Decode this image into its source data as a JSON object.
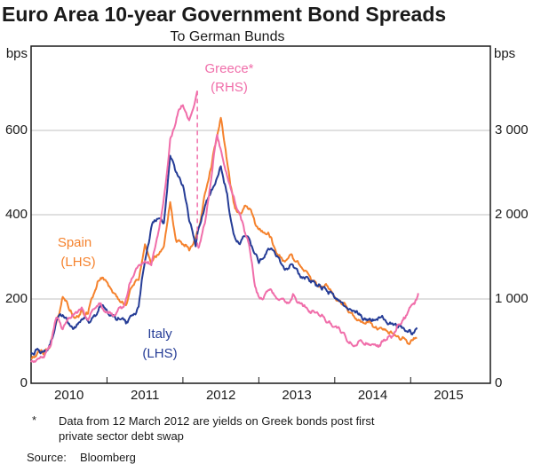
{
  "header": {
    "title": "Euro Area 10-year Government Bond Spreads",
    "subtitle": "To German Bunds"
  },
  "footnote": {
    "marker": "*",
    "text": "Data from 12 March 2012 are yields on Greek bonds post first private sector debt swap"
  },
  "source": {
    "label": "Source:",
    "value": "Bloomberg"
  },
  "chart_data": {
    "type": "line",
    "title": "Euro Area 10-year Government Bond Spreads",
    "subtitle": "To German Bunds",
    "grid": "horizontal",
    "x_axis": {
      "range": [
        2010,
        2016.05
      ],
      "year_ticks": [
        2011,
        2012,
        2013,
        2014,
        2015
      ],
      "year_labels": [
        "2010",
        "2011",
        "2012",
        "2013",
        "2014",
        "2015"
      ]
    },
    "left_axis": {
      "unit": "bps",
      "range": [
        0,
        800
      ],
      "ticks": [
        0,
        200,
        400,
        600
      ],
      "tick_labels": [
        "0",
        "200",
        "400",
        "600"
      ]
    },
    "right_axis": {
      "unit": "bps",
      "range": [
        0,
        4000
      ],
      "ticks": [
        0,
        1000,
        2000,
        3000
      ],
      "tick_labels": [
        "0",
        "1 000",
        "2 000",
        "3 000"
      ]
    },
    "series": [
      {
        "name": "Spain",
        "label": "Spain",
        "sub": "(LHS)",
        "axis": "left",
        "color": "#F5822D",
        "segments": [
          [
            [
              2010.0,
              60
            ],
            [
              2010.083,
              72
            ],
            [
              2010.167,
              68
            ],
            [
              2010.25,
              88
            ],
            [
              2010.333,
              145
            ],
            [
              2010.417,
              205
            ],
            [
              2010.5,
              175
            ],
            [
              2010.583,
              155
            ],
            [
              2010.667,
              175
            ],
            [
              2010.75,
              165
            ],
            [
              2010.833,
              215
            ],
            [
              2010.917,
              250
            ],
            [
              2011.0,
              240
            ],
            [
              2011.083,
              215
            ],
            [
              2011.167,
              195
            ],
            [
              2011.25,
              185
            ],
            [
              2011.333,
              230
            ],
            [
              2011.417,
              245
            ],
            [
              2011.5,
              330
            ],
            [
              2011.583,
              285
            ],
            [
              2011.667,
              305
            ],
            [
              2011.75,
              325
            ],
            [
              2011.833,
              430
            ],
            [
              2011.917,
              335
            ],
            [
              2012.0,
              330
            ],
            [
              2012.083,
              315
            ],
            [
              2012.167,
              345
            ],
            [
              2012.25,
              405
            ],
            [
              2012.333,
              480
            ],
            [
              2012.417,
              560
            ],
            [
              2012.5,
              630
            ],
            [
              2012.583,
              525
            ],
            [
              2012.667,
              430
            ],
            [
              2012.75,
              400
            ],
            [
              2012.833,
              420
            ],
            [
              2012.917,
              400
            ],
            [
              2013.0,
              365
            ],
            [
              2013.083,
              355
            ],
            [
              2013.167,
              345
            ],
            [
              2013.25,
              305
            ],
            [
              2013.333,
              290
            ],
            [
              2013.417,
              305
            ],
            [
              2013.5,
              290
            ],
            [
              2013.583,
              270
            ],
            [
              2013.667,
              255
            ],
            [
              2013.75,
              240
            ],
            [
              2013.833,
              230
            ],
            [
              2013.917,
              225
            ],
            [
              2014.0,
              205
            ],
            [
              2014.083,
              190
            ],
            [
              2014.167,
              175
            ],
            [
              2014.25,
              160
            ],
            [
              2014.333,
              150
            ],
            [
              2014.417,
              145
            ],
            [
              2014.5,
              135
            ],
            [
              2014.583,
              130
            ],
            [
              2014.667,
              128
            ],
            [
              2014.75,
              120
            ],
            [
              2014.833,
              112
            ],
            [
              2014.917,
              107
            ],
            [
              2015.0,
              100
            ],
            [
              2015.083,
              108
            ]
          ]
        ]
      },
      {
        "name": "Italy",
        "label": "Italy",
        "sub": "(LHS)",
        "axis": "left",
        "color": "#253C96",
        "segments": [
          [
            [
              2010.0,
              70
            ],
            [
              2010.083,
              82
            ],
            [
              2010.167,
              76
            ],
            [
              2010.25,
              92
            ],
            [
              2010.333,
              150
            ],
            [
              2010.417,
              162
            ],
            [
              2010.5,
              142
            ],
            [
              2010.583,
              132
            ],
            [
              2010.667,
              152
            ],
            [
              2010.75,
              148
            ],
            [
              2010.833,
              162
            ],
            [
              2010.917,
              185
            ],
            [
              2011.0,
              172
            ],
            [
              2011.083,
              162
            ],
            [
              2011.167,
              152
            ],
            [
              2011.25,
              142
            ],
            [
              2011.333,
              162
            ],
            [
              2011.417,
              182
            ],
            [
              2011.5,
              290
            ],
            [
              2011.583,
              370
            ],
            [
              2011.667,
              390
            ],
            [
              2011.75,
              380
            ],
            [
              2011.833,
              540
            ],
            [
              2011.917,
              500
            ],
            [
              2012.0,
              470
            ],
            [
              2012.083,
              385
            ],
            [
              2012.167,
              325
            ],
            [
              2012.25,
              395
            ],
            [
              2012.333,
              440
            ],
            [
              2012.417,
              470
            ],
            [
              2012.5,
              515
            ],
            [
              2012.583,
              450
            ],
            [
              2012.667,
              355
            ],
            [
              2012.75,
              330
            ],
            [
              2012.833,
              350
            ],
            [
              2012.917,
              320
            ],
            [
              2013.0,
              285
            ],
            [
              2013.083,
              305
            ],
            [
              2013.167,
              320
            ],
            [
              2013.25,
              300
            ],
            [
              2013.333,
              272
            ],
            [
              2013.417,
              282
            ],
            [
              2013.5,
              272
            ],
            [
              2013.583,
              252
            ],
            [
              2013.667,
              242
            ],
            [
              2013.75,
              232
            ],
            [
              2013.833,
              222
            ],
            [
              2013.917,
              212
            ],
            [
              2014.0,
              202
            ],
            [
              2014.083,
              192
            ],
            [
              2014.167,
              178
            ],
            [
              2014.25,
              172
            ],
            [
              2014.333,
              162
            ],
            [
              2014.417,
              152
            ],
            [
              2014.5,
              152
            ],
            [
              2014.583,
              157
            ],
            [
              2014.667,
              150
            ],
            [
              2014.75,
              142
            ],
            [
              2014.833,
              132
            ],
            [
              2014.917,
              128
            ],
            [
              2015.0,
              122
            ],
            [
              2015.083,
              132
            ]
          ]
        ]
      },
      {
        "name": "Greece",
        "label": "Greece*",
        "sub": "(RHS)",
        "axis": "right",
        "color": "#F06EAA",
        "break": {
          "t": 2012.19,
          "from": 3470,
          "to": 1600
        },
        "segments": [
          [
            [
              2010.0,
              250
            ],
            [
              2010.083,
              285
            ],
            [
              2010.167,
              305
            ],
            [
              2010.25,
              430
            ],
            [
              2010.333,
              780
            ],
            [
              2010.417,
              640
            ],
            [
              2010.5,
              770
            ],
            [
              2010.583,
              840
            ],
            [
              2010.667,
              900
            ],
            [
              2010.75,
              750
            ],
            [
              2010.833,
              880
            ],
            [
              2010.917,
              950
            ],
            [
              2011.0,
              850
            ],
            [
              2011.083,
              800
            ],
            [
              2011.167,
              900
            ],
            [
              2011.25,
              1000
            ],
            [
              2011.333,
              1250
            ],
            [
              2011.417,
              1400
            ],
            [
              2011.5,
              1450
            ],
            [
              2011.583,
              1400
            ],
            [
              2011.667,
              1750
            ],
            [
              2011.75,
              2200
            ],
            [
              2011.833,
              2900
            ],
            [
              2011.917,
              3150
            ],
            [
              2012.0,
              3300
            ],
            [
              2012.083,
              3120
            ],
            [
              2012.19,
              3470
            ]
          ],
          [
            [
              2012.2,
              1600
            ],
            [
              2012.29,
              1900
            ],
            [
              2012.37,
              2400
            ],
            [
              2012.45,
              2950
            ],
            [
              2012.54,
              2600
            ],
            [
              2012.62,
              2350
            ],
            [
              2012.7,
              2100
            ],
            [
              2012.79,
              1900
            ],
            [
              2012.87,
              1650
            ],
            [
              2012.95,
              1150
            ],
            [
              2013.04,
              1000
            ],
            [
              2013.12,
              1100
            ],
            [
              2013.2,
              1050
            ],
            [
              2013.29,
              1000
            ],
            [
              2013.37,
              950
            ],
            [
              2013.45,
              1060
            ],
            [
              2013.54,
              950
            ],
            [
              2013.62,
              900
            ],
            [
              2013.7,
              860
            ],
            [
              2013.79,
              810
            ],
            [
              2013.87,
              760
            ],
            [
              2013.95,
              710
            ],
            [
              2014.04,
              660
            ],
            [
              2014.12,
              600
            ],
            [
              2014.2,
              490
            ],
            [
              2014.29,
              450
            ],
            [
              2014.37,
              480
            ],
            [
              2014.45,
              465
            ],
            [
              2014.54,
              450
            ],
            [
              2014.62,
              500
            ],
            [
              2014.7,
              550
            ],
            [
              2014.79,
              610
            ],
            [
              2014.87,
              700
            ],
            [
              2014.95,
              810
            ],
            [
              2015.04,
              950
            ],
            [
              2015.1,
              1070
            ]
          ]
        ]
      }
    ]
  }
}
